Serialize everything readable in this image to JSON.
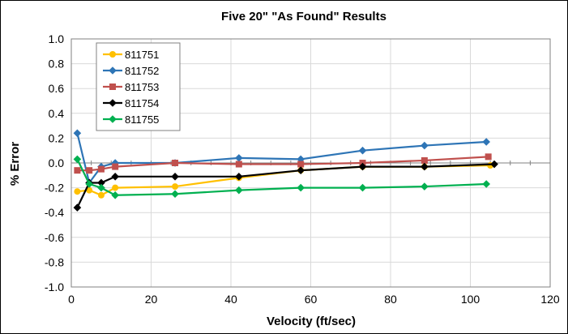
{
  "chart_data": {
    "type": "line",
    "title": "Five 20\" \"As Found\" Results",
    "xlabel": "Velocity (ft/sec)",
    "ylabel": "% Error",
    "xlim": [
      0,
      120
    ],
    "ylim": [
      -1.0,
      1.0
    ],
    "x_ticks": [
      "0",
      "20",
      "40",
      "60",
      "80",
      "100",
      "120"
    ],
    "y_ticks": [
      "1.0",
      "0.8",
      "0.6",
      "0.4",
      "0.2",
      "0.0",
      "-0.2",
      "-0.4",
      "-0.6",
      "-0.8",
      "-1.0"
    ],
    "grid": true,
    "legend_position": "top-left",
    "series": [
      {
        "name": "811751",
        "color": "#FFC000",
        "marker": "circle",
        "x": [
          1.5,
          4.5,
          7.5,
          11,
          26,
          42,
          57.5,
          73,
          88.5,
          105
        ],
        "y": [
          -0.23,
          -0.22,
          -0.26,
          -0.2,
          -0.19,
          -0.12,
          -0.06,
          -0.03,
          -0.03,
          -0.02
        ]
      },
      {
        "name": "811752",
        "color": "#2E75B6",
        "marker": "diamond",
        "x": [
          1.5,
          4.5,
          7.5,
          11,
          26,
          42,
          57.5,
          73,
          88.5,
          104
        ],
        "y": [
          0.24,
          -0.16,
          -0.03,
          0.0,
          0.0,
          0.04,
          0.03,
          0.1,
          0.14,
          0.17
        ]
      },
      {
        "name": "811753",
        "color": "#C0504D",
        "marker": "square",
        "x": [
          1.5,
          4.5,
          7.5,
          11,
          26,
          42,
          57.5,
          73,
          88.5,
          104.5
        ],
        "y": [
          -0.06,
          -0.06,
          -0.05,
          -0.03,
          0.0,
          -0.01,
          -0.01,
          0.0,
          0.02,
          0.05
        ]
      },
      {
        "name": "811754",
        "color": "#000000",
        "marker": "diamond",
        "x": [
          1.5,
          4.5,
          7.5,
          11,
          26,
          42,
          57.5,
          73,
          88.5,
          106
        ],
        "y": [
          -0.36,
          -0.16,
          -0.16,
          -0.11,
          -0.11,
          -0.11,
          -0.06,
          -0.03,
          -0.03,
          -0.01
        ]
      },
      {
        "name": "811755",
        "color": "#00B050",
        "marker": "diamond",
        "x": [
          1.5,
          4.5,
          7.5,
          11,
          26,
          42,
          57.5,
          73,
          88.5,
          104
        ],
        "y": [
          0.03,
          -0.17,
          -0.2,
          -0.26,
          -0.25,
          -0.22,
          -0.2,
          -0.2,
          -0.19,
          -0.17
        ]
      }
    ]
  }
}
